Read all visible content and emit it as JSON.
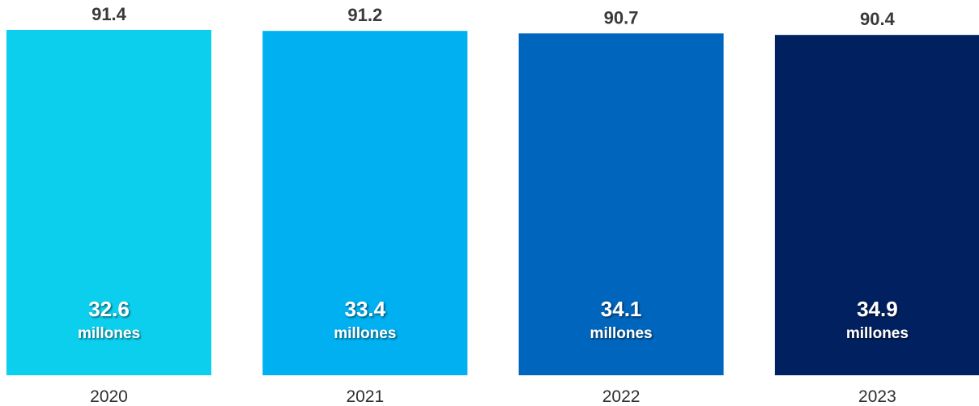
{
  "chart_data": {
    "type": "bar",
    "categories": [
      "2020",
      "2021",
      "2022",
      "2023"
    ],
    "values": [
      91.4,
      91.2,
      90.7,
      90.4
    ],
    "inner_values": [
      "32.6",
      "33.4",
      "34.1",
      "34.9"
    ],
    "inner_unit": "millones",
    "colors": [
      "#0ccfee",
      "#00b0f0",
      "#0066bd",
      "#002060"
    ],
    "title": "",
    "xlabel": "",
    "ylabel": "",
    "ylim": [
      0,
      91.4
    ],
    "grid": false,
    "legend": "none"
  }
}
